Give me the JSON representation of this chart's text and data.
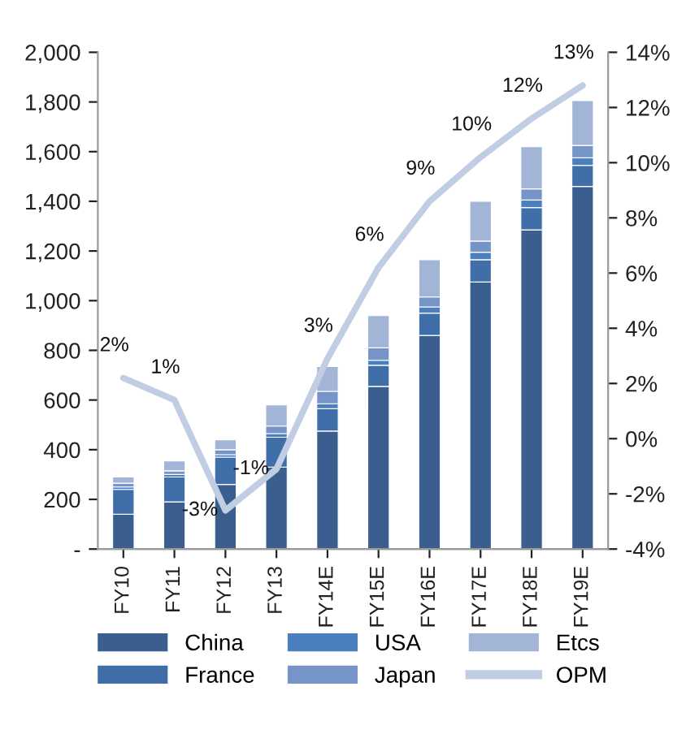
{
  "chart_data": {
    "type": "bar",
    "stacked": true,
    "categories": [
      "FY10",
      "FY11",
      "FY12",
      "FY13",
      "FY14E",
      "FY15E",
      "FY16E",
      "FY17E",
      "FY18E",
      "FY19E"
    ],
    "series": [
      {
        "name": "China",
        "color": "#3a5f8f",
        "values": [
          140,
          190,
          260,
          330,
          475,
          655,
          860,
          1075,
          1285,
          1460
        ]
      },
      {
        "name": "France",
        "color": "#3f6ea8",
        "values": [
          100,
          100,
          110,
          120,
          90,
          85,
          90,
          90,
          90,
          85
        ]
      },
      {
        "name": "USA",
        "color": "#4a7fc0",
        "values": [
          10,
          10,
          10,
          15,
          20,
          20,
          25,
          30,
          30,
          30
        ]
      },
      {
        "name": "Japan",
        "color": "#7694c8",
        "values": [
          15,
          15,
          20,
          30,
          50,
          50,
          40,
          45,
          45,
          50
        ]
      },
      {
        "name": "Etcs",
        "color": "#a3b5d6",
        "values": [
          25,
          40,
          40,
          85,
          100,
          130,
          150,
          160,
          170,
          180
        ]
      },
      {
        "name": "OPM",
        "type": "line",
        "axis": "y2",
        "color": "#c0cde3",
        "values": [
          2.2,
          1.4,
          -2.6,
          -1.1,
          2.9,
          6.2,
          8.6,
          10.2,
          11.6,
          12.8
        ],
        "value_labels": [
          "2%",
          "1%",
          "-3%",
          "-1%",
          "3%",
          "6%",
          "9%",
          "10%",
          "12%",
          "13%"
        ]
      }
    ],
    "ylim": [
      0,
      2000
    ],
    "yticks": [
      {
        "value": 0,
        "label": "-"
      },
      200,
      400,
      600,
      800,
      {
        "value": 1000,
        "label": "1,000"
      },
      {
        "value": 1200,
        "label": "1,200"
      },
      {
        "value": 1400,
        "label": "1,400"
      },
      {
        "value": 1600,
        "label": "1,600"
      },
      {
        "value": 1800,
        "label": "1,800"
      },
      {
        "value": 2000,
        "label": "2,000"
      }
    ],
    "y2lim": [
      -4,
      14
    ],
    "y2ticks": [
      {
        "value": -4,
        "label": "-4%"
      },
      {
        "value": -2,
        "label": "-2%"
      },
      {
        "value": 0,
        "label": "0%"
      },
      {
        "value": 2,
        "label": "2%"
      },
      {
        "value": 4,
        "label": "4%"
      },
      {
        "value": 6,
        "label": "6%"
      },
      {
        "value": 8,
        "label": "8%"
      },
      {
        "value": 10,
        "label": "10%"
      },
      {
        "value": 12,
        "label": "12%"
      },
      {
        "value": 14,
        "label": "14%"
      }
    ],
    "grid": false,
    "legend": "bottom"
  }
}
